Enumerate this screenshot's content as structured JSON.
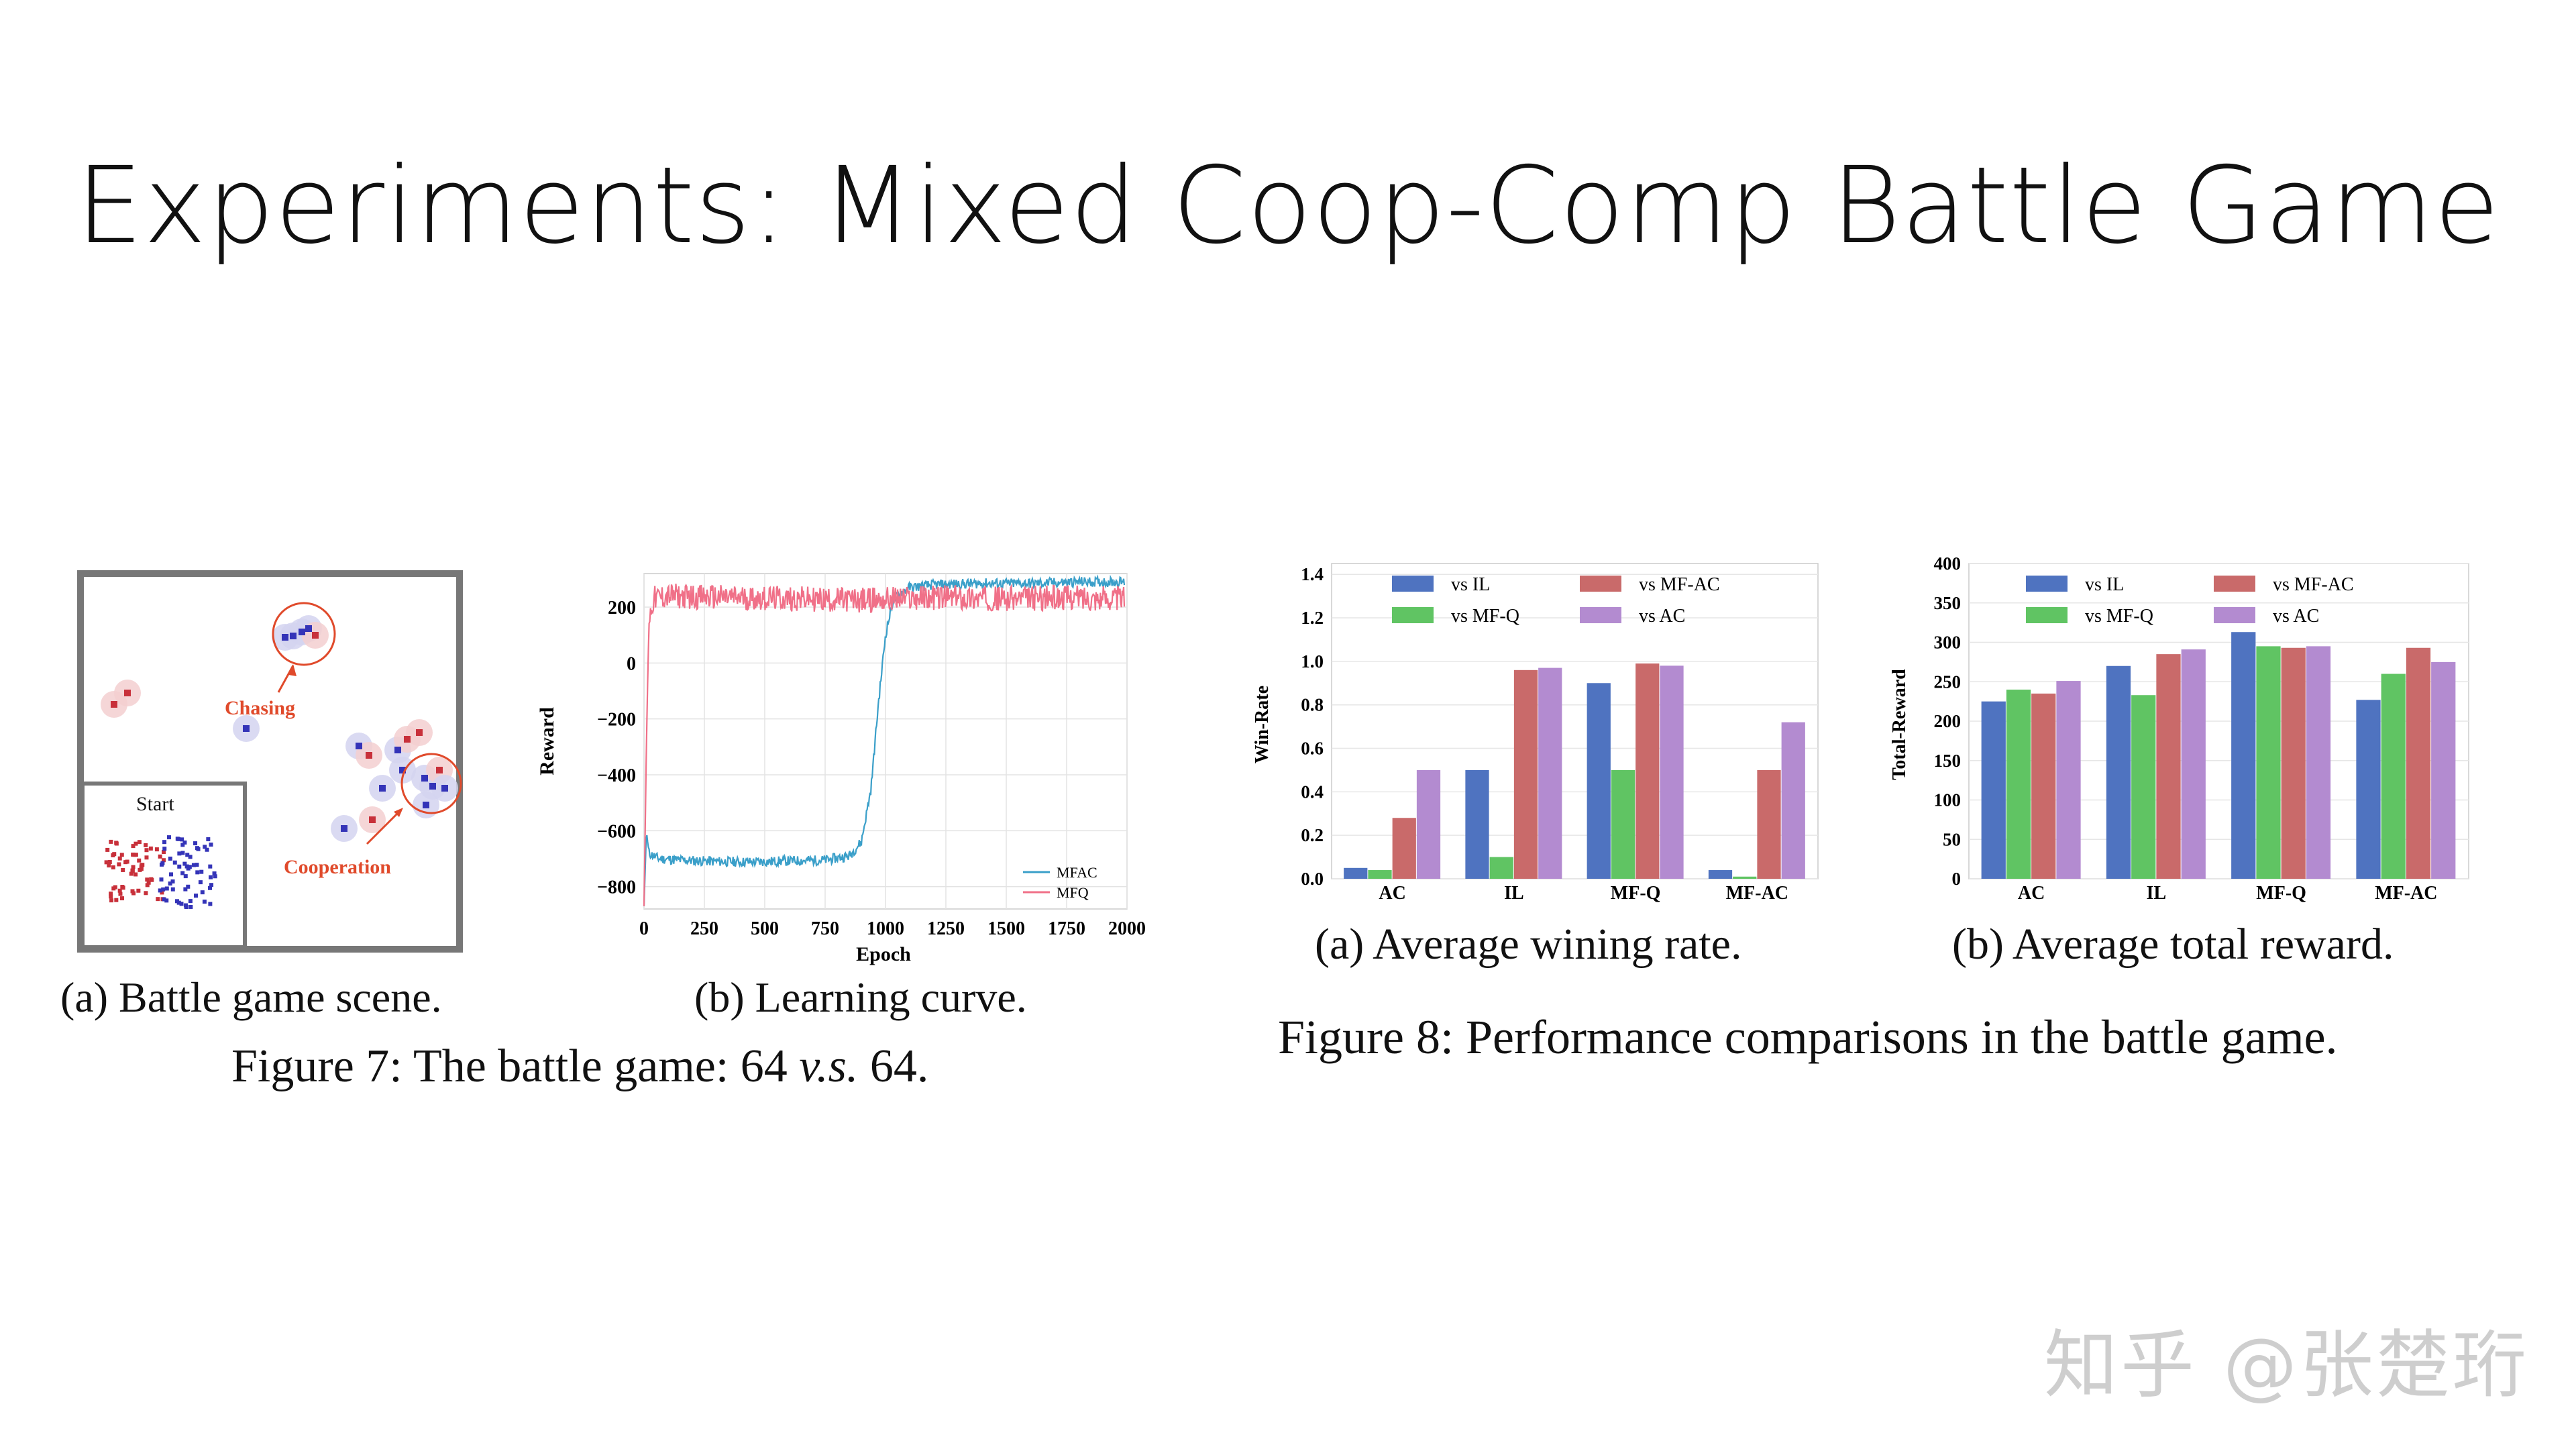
{
  "slide": {
    "title": "Experiments: Mixed Coop-Comp Battle Game",
    "watermark": "知乎 @张楚珩"
  },
  "figure7": {
    "scene": {
      "start_label": "Start",
      "chasing_label": "Chasing",
      "cooperation_label": "Cooperation",
      "caption": "(a) Battle game scene.",
      "colors": {
        "red": "#c8303a",
        "blue": "#3434b8",
        "annot": "#e04a2b"
      }
    },
    "curve_caption": "(b) Learning curve.",
    "figure_caption": "Figure 7: The battle game: 64 v.s. 64."
  },
  "figure8": {
    "winrate_caption": "(a) Average wining rate.",
    "reward_caption": "(b) Average total reward.",
    "figure_caption": "Figure 8: Performance comparisons in the battle game."
  },
  "chart_data": [
    {
      "type": "line",
      "xlabel": "Epoch",
      "ylabel": "Reward",
      "xlim": [
        0,
        2000
      ],
      "ylim": [
        -880,
        320
      ],
      "xticks": [
        0,
        250,
        500,
        750,
        1000,
        1250,
        1500,
        1750,
        2000
      ],
      "yticks": [
        -800,
        -600,
        -400,
        -200,
        0,
        200
      ],
      "grid": true,
      "legend_position": "bottom-right",
      "series": [
        {
          "name": "MFAC",
          "color": "#3a9fc9",
          "x": [
            0,
            10,
            20,
            60,
            150,
            300,
            450,
            600,
            750,
            850,
            900,
            940,
            970,
            1000,
            1030,
            1060,
            1100,
            1200,
            1400,
            1600,
            1800,
            1990
          ],
          "y": [
            -870,
            -600,
            -680,
            -700,
            -705,
            -710,
            -712,
            -708,
            -705,
            -690,
            -640,
            -450,
            -150,
            100,
            220,
            250,
            270,
            280,
            285,
            285,
            290,
            290
          ]
        },
        {
          "name": "MFQ",
          "color": "#f07088",
          "x": [
            0,
            10,
            20,
            40,
            100,
            300,
            600,
            900,
            1200,
            1500,
            1800,
            1990
          ],
          "y": [
            -870,
            -300,
            150,
            230,
            240,
            235,
            230,
            225,
            235,
            230,
            235,
            230
          ]
        }
      ]
    },
    {
      "type": "bar",
      "ylabel": "Win-Rate",
      "categories": [
        "AC",
        "IL",
        "MF-Q",
        "MF-AC"
      ],
      "ylim": [
        0,
        1.45
      ],
      "yticks": [
        0.0,
        0.2,
        0.4,
        0.6,
        0.8,
        1.0,
        1.2,
        1.4
      ],
      "legend_position": "top",
      "series": [
        {
          "name": "vs IL",
          "color": "#4f73c0",
          "values": [
            0.05,
            0.5,
            0.9,
            0.04
          ]
        },
        {
          "name": "vs MF-Q",
          "color": "#60c463",
          "values": [
            0.04,
            0.1,
            0.5,
            0.01
          ]
        },
        {
          "name": "vs MF-AC",
          "color": "#c96a6a",
          "values": [
            0.28,
            0.96,
            0.99,
            0.5
          ]
        },
        {
          "name": "vs AC",
          "color": "#b38bd0",
          "values": [
            0.5,
            0.97,
            0.98,
            0.72
          ]
        }
      ]
    },
    {
      "type": "bar",
      "ylabel": "Total-Reward",
      "categories": [
        "AC",
        "IL",
        "MF-Q",
        "MF-AC"
      ],
      "ylim": [
        0,
        400
      ],
      "yticks": [
        0,
        50,
        100,
        150,
        200,
        250,
        300,
        350,
        400
      ],
      "legend_position": "top",
      "series": [
        {
          "name": "vs IL",
          "color": "#4f73c0",
          "values": [
            225,
            270,
            313,
            227
          ]
        },
        {
          "name": "vs MF-Q",
          "color": "#60c463",
          "values": [
            240,
            233,
            295,
            260
          ]
        },
        {
          "name": "vs MF-AC",
          "color": "#c96a6a",
          "values": [
            235,
            285,
            293,
            293
          ]
        },
        {
          "name": "vs AC",
          "color": "#b38bd0",
          "values": [
            251,
            291,
            295,
            275
          ]
        }
      ]
    }
  ]
}
